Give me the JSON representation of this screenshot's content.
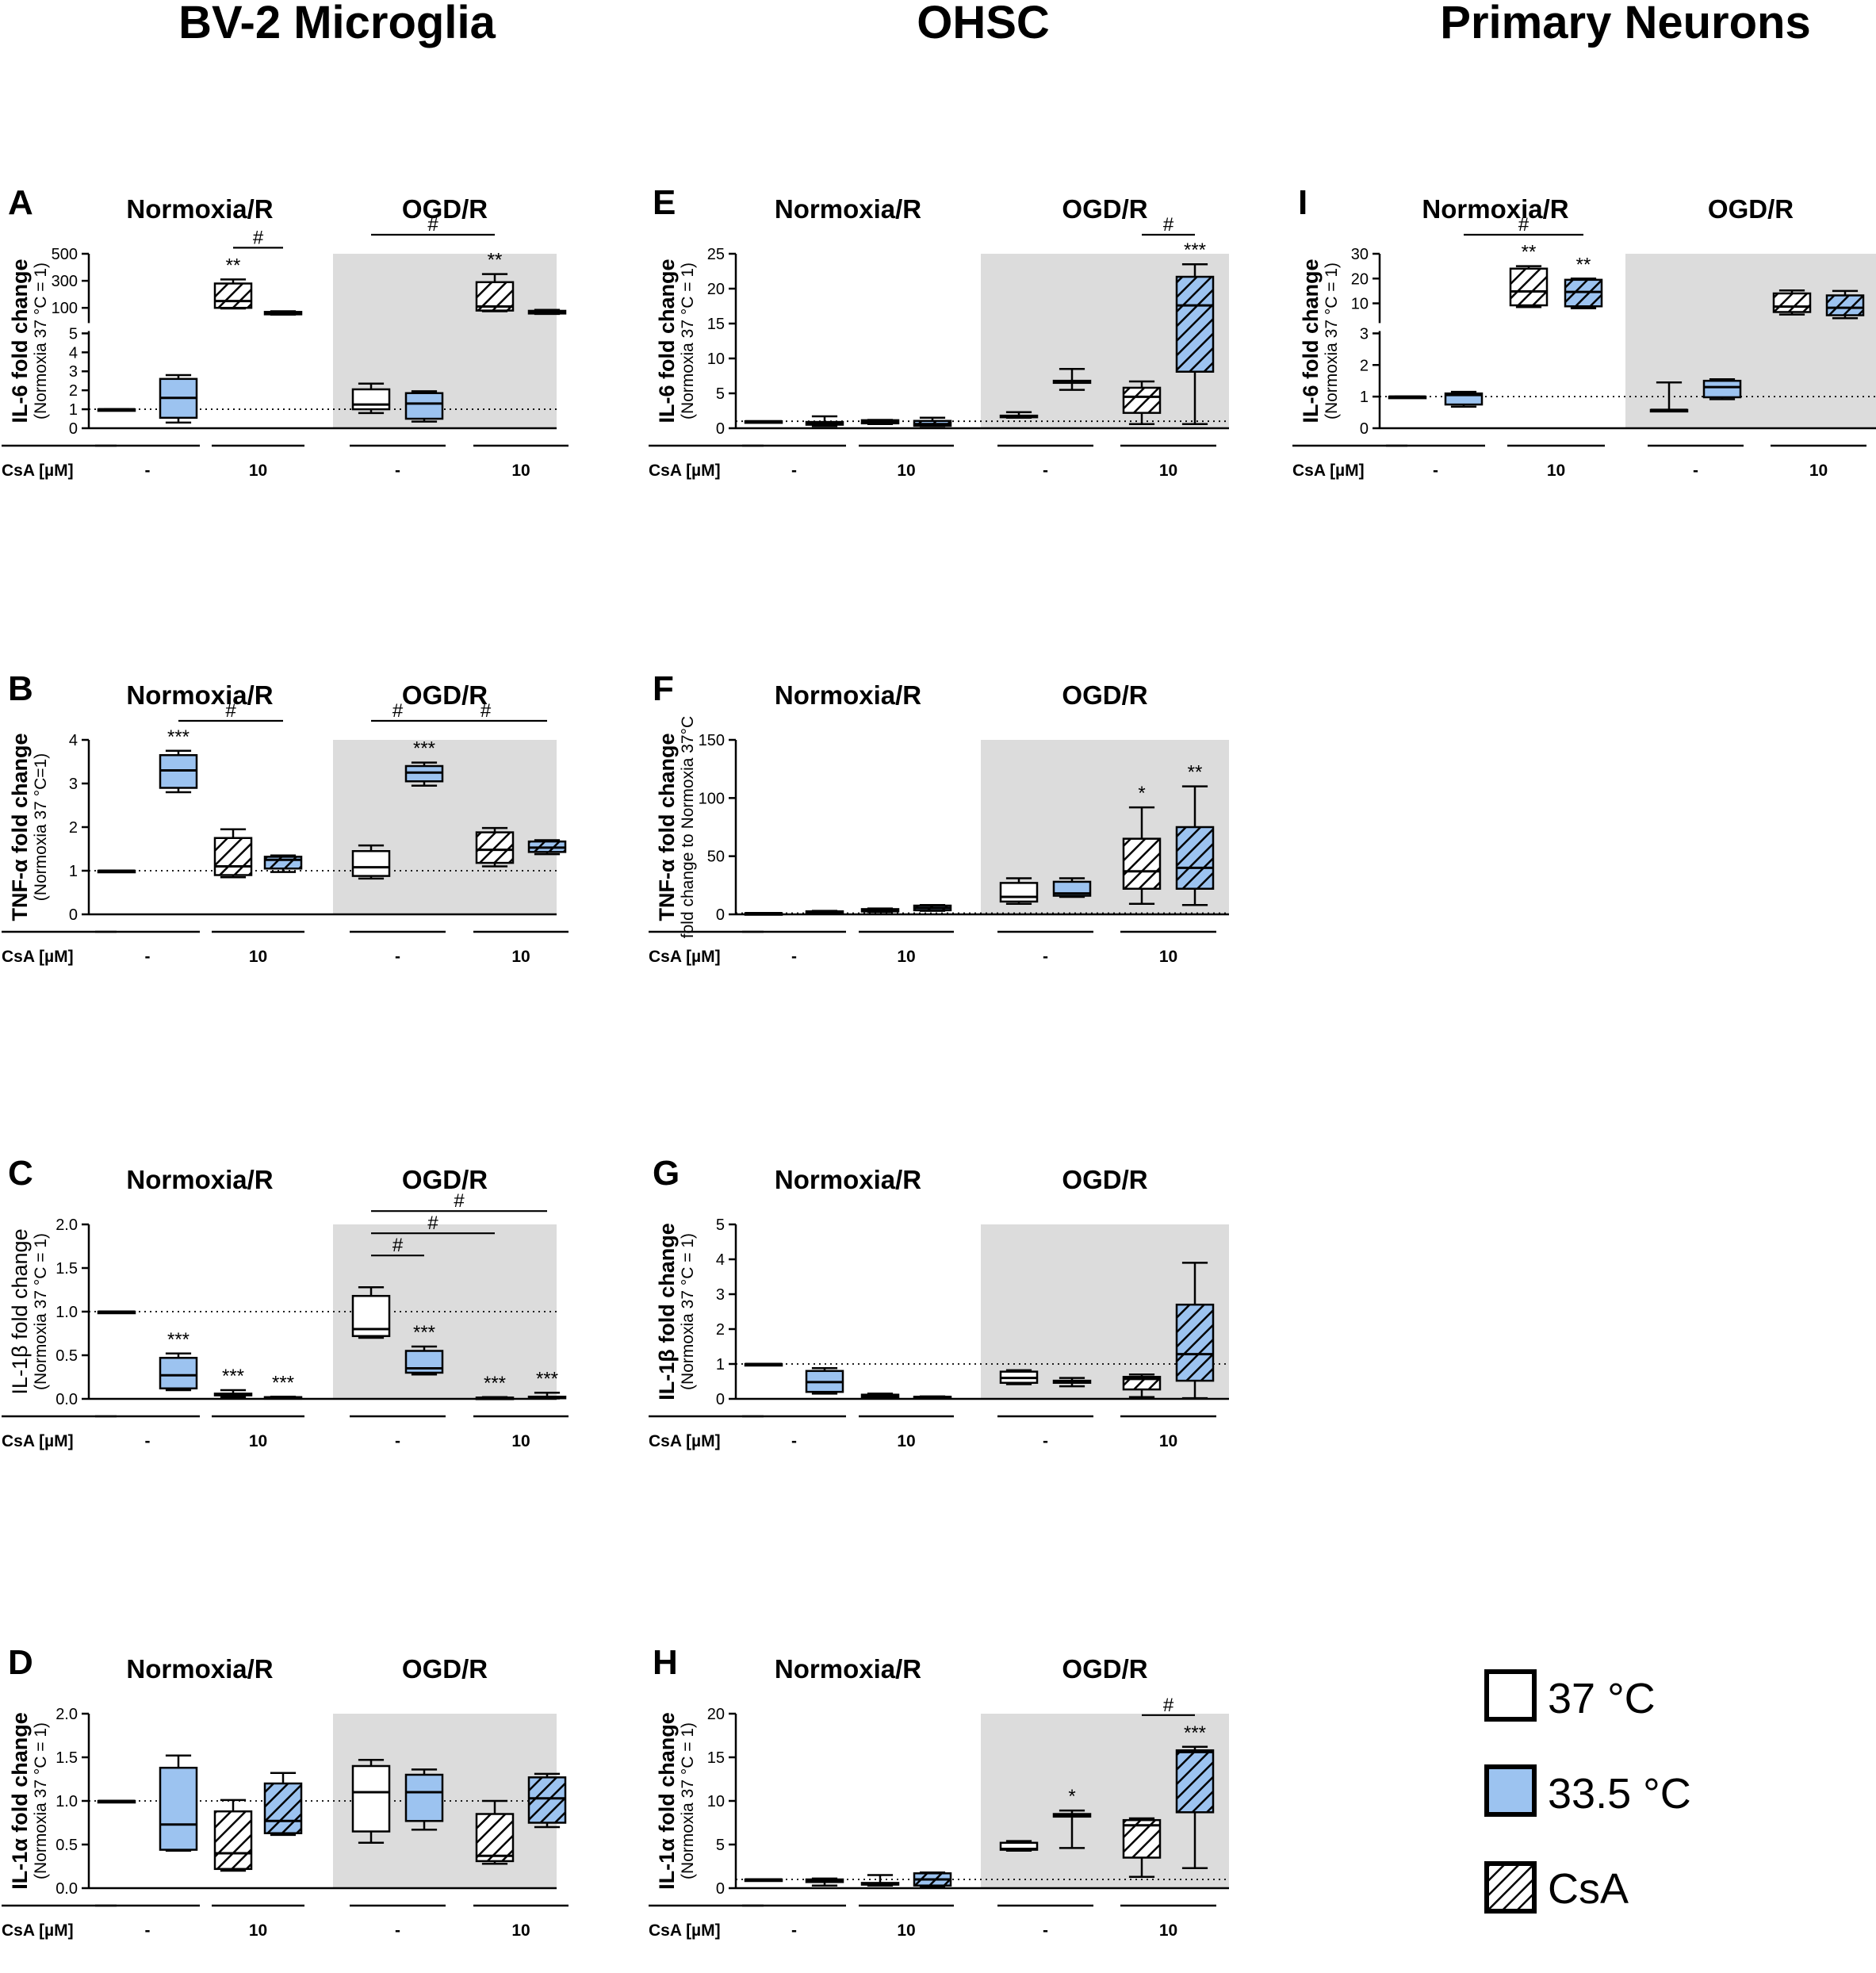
{
  "columns": [
    "BV-2 Microglia",
    "OHSC",
    "Primary Neurons"
  ],
  "colors": {
    "c37": "#ffffff",
    "c335": "#9cc3f0",
    "shade": "#dcdcdc",
    "hatch": "#000000"
  },
  "legend": [
    {
      "label": "37 °C",
      "style": "white"
    },
    {
      "label": "33.5 °C",
      "style": "blue"
    },
    {
      "label": "CsA",
      "style": "hatch"
    }
  ],
  "chart_data": [
    {
      "id": "A",
      "type": "box",
      "column": "BV-2 Microglia",
      "ylabel": "IL-6 fold change",
      "ylabel2": "(Normoxia 37 °C = 1)",
      "axis_break": {
        "lower": [
          0,
          5
        ],
        "upper": [
          5,
          500
        ]
      },
      "ticks": [
        0,
        1,
        2,
        3,
        4,
        5,
        100,
        300,
        500
      ],
      "conditions": [
        "Normoxia/R",
        "OGD/R"
      ],
      "csa_label": "CsA [µM]",
      "csa_groups": [
        "-",
        "10",
        "-",
        "10"
      ],
      "groups": [
        "Norm 37",
        "Norm 33.5",
        "Norm CsA 37",
        "Norm CsA 33.5",
        "OGD 37",
        "OGD 33.5",
        "OGD CsA 37",
        "OGD CsA 33.5"
      ],
      "boxes": [
        {
          "style": "white",
          "min": 1,
          "q1": 1,
          "med": 1,
          "q3": 1,
          "max": 1
        },
        {
          "style": "blue",
          "min": 0.3,
          "q1": 0.55,
          "med": 1.6,
          "q3": 2.6,
          "max": 2.8
        },
        {
          "style": "hatch",
          "min": 95,
          "q1": 100,
          "med": 150,
          "q3": 280,
          "max": 310
        },
        {
          "style": "hatch-blue",
          "min": 50,
          "q1": 52,
          "med": 60,
          "q3": 70,
          "max": 75
        },
        {
          "style": "white",
          "min": 0.8,
          "q1": 1.0,
          "med": 1.25,
          "q3": 2.05,
          "max": 2.35
        },
        {
          "style": "blue",
          "min": 0.35,
          "q1": 0.5,
          "med": 1.3,
          "q3": 1.85,
          "max": 1.95
        },
        {
          "style": "hatch",
          "min": 75,
          "q1": 80,
          "med": 110,
          "q3": 290,
          "max": 350
        },
        {
          "style": "hatch-blue",
          "min": 55,
          "q1": 58,
          "med": 63,
          "q3": 78,
          "max": 85
        }
      ],
      "stars": [
        {
          "g": 2,
          "text": "**"
        },
        {
          "g": 6,
          "text": "**"
        }
      ],
      "brackets": [
        {
          "from": 2,
          "to": 3,
          "text": "#"
        },
        {
          "from": 4,
          "to": 6,
          "text": "#"
        }
      ]
    },
    {
      "id": "B",
      "type": "box",
      "column": "BV-2 Microglia",
      "ylabel": "TNF-α fold change",
      "ylabel2": "(Normoxia 37 °C=1)",
      "ylim": [
        0,
        4
      ],
      "ticks": [
        0,
        1,
        2,
        3,
        4
      ],
      "conditions": [
        "Normoxia/R",
        "OGD/R"
      ],
      "csa_label": "CsA [µM]",
      "csa_groups": [
        "-",
        "10",
        "-",
        "10"
      ],
      "boxes": [
        {
          "style": "white",
          "min": 1,
          "q1": 1,
          "med": 1,
          "q3": 1,
          "max": 1
        },
        {
          "style": "blue",
          "min": 2.8,
          "q1": 2.9,
          "med": 3.3,
          "q3": 3.65,
          "max": 3.75
        },
        {
          "style": "hatch",
          "min": 0.85,
          "q1": 0.9,
          "med": 1.1,
          "q3": 1.75,
          "max": 1.95
        },
        {
          "style": "hatch-blue",
          "min": 0.97,
          "q1": 1.05,
          "med": 1.25,
          "q3": 1.32,
          "max": 1.35
        },
        {
          "style": "white",
          "min": 0.82,
          "q1": 0.88,
          "med": 1.08,
          "q3": 1.45,
          "max": 1.58
        },
        {
          "style": "blue",
          "min": 2.95,
          "q1": 3.05,
          "med": 3.25,
          "q3": 3.4,
          "max": 3.48
        },
        {
          "style": "hatch",
          "min": 1.1,
          "q1": 1.18,
          "med": 1.48,
          "q3": 1.88,
          "max": 1.98
        },
        {
          "style": "hatch-blue",
          "min": 1.38,
          "q1": 1.43,
          "med": 1.53,
          "q3": 1.67,
          "max": 1.7
        }
      ],
      "stars": [
        {
          "g": 1,
          "text": "***"
        },
        {
          "g": 5,
          "text": "***"
        }
      ],
      "brackets": [
        {
          "from": 1,
          "to": 3,
          "text": "#"
        },
        {
          "from": 4,
          "to": 5,
          "text": "#"
        },
        {
          "from": 5,
          "to": 7,
          "text": "#"
        }
      ]
    },
    {
      "id": "C",
      "type": "box",
      "column": "BV-2 Microglia",
      "ylabel": "IL-1β fold change",
      "ylabel2": "(Normoxia 37 °C = 1)",
      "ylabel_bold": false,
      "ylim": [
        0,
        2
      ],
      "ticks": [
        0.0,
        0.5,
        1.0,
        1.5,
        2.0
      ],
      "tick_decimals": 1,
      "conditions": [
        "Normoxia/R",
        "OGD/R"
      ],
      "csa_label": "CsA [µM]",
      "csa_groups": [
        "-",
        "10",
        "-",
        "10"
      ],
      "boxes": [
        {
          "style": "white",
          "min": 1,
          "q1": 1,
          "med": 1,
          "q3": 1,
          "max": 1
        },
        {
          "style": "blue",
          "min": 0.1,
          "q1": 0.12,
          "med": 0.27,
          "q3": 0.47,
          "max": 0.52
        },
        {
          "style": "hatch",
          "min": 0.02,
          "q1": 0.04,
          "med": 0.05,
          "q3": 0.06,
          "max": 0.1
        },
        {
          "style": "hatch-blue",
          "min": 0.005,
          "q1": 0.01,
          "med": 0.015,
          "q3": 0.02,
          "max": 0.025
        },
        {
          "style": "white",
          "min": 0.7,
          "q1": 0.72,
          "med": 0.8,
          "q3": 1.18,
          "max": 1.28
        },
        {
          "style": "blue",
          "min": 0.28,
          "q1": 0.3,
          "med": 0.35,
          "q3": 0.55,
          "max": 0.6
        },
        {
          "style": "hatch",
          "min": 0.005,
          "q1": 0.008,
          "med": 0.01,
          "q3": 0.015,
          "max": 0.02
        },
        {
          "style": "hatch-blue",
          "min": 0.005,
          "q1": 0.01,
          "med": 0.015,
          "q3": 0.025,
          "max": 0.07
        }
      ],
      "stars": [
        {
          "g": 1,
          "text": "***"
        },
        {
          "g": 2,
          "text": "***"
        },
        {
          "g": 3,
          "text": "***"
        },
        {
          "g": 5,
          "text": "***"
        },
        {
          "g": 6,
          "text": "***"
        },
        {
          "g": 7,
          "text": "***"
        }
      ],
      "brackets": [
        {
          "from": 4,
          "to": 5,
          "text": "#"
        },
        {
          "from": 4,
          "to": 6,
          "text": "#"
        },
        {
          "from": 4,
          "to": 7,
          "text": "#"
        }
      ]
    },
    {
      "id": "D",
      "type": "box",
      "column": "BV-2 Microglia",
      "ylabel": "IL-1α fold change",
      "ylabel2": "(Normoxia 37 °C = 1)",
      "ylim": [
        0,
        2
      ],
      "ticks": [
        0.0,
        0.5,
        1.0,
        1.5,
        2.0
      ],
      "tick_decimals": 1,
      "conditions": [
        "Normoxia/R",
        "OGD/R"
      ],
      "csa_label": "CsA [µM]",
      "csa_groups": [
        "-",
        "10",
        "-",
        "10"
      ],
      "boxes": [
        {
          "style": "white",
          "min": 1,
          "q1": 1,
          "med": 1,
          "q3": 1,
          "max": 1
        },
        {
          "style": "blue",
          "min": 0.43,
          "q1": 0.44,
          "med": 0.73,
          "q3": 1.38,
          "max": 1.52
        },
        {
          "style": "hatch",
          "min": 0.2,
          "q1": 0.22,
          "med": 0.4,
          "q3": 0.88,
          "max": 1.01
        },
        {
          "style": "hatch-blue",
          "min": 0.61,
          "q1": 0.63,
          "med": 0.77,
          "q3": 1.2,
          "max": 1.32
        },
        {
          "style": "white",
          "min": 0.52,
          "q1": 0.65,
          "med": 1.1,
          "q3": 1.4,
          "max": 1.47
        },
        {
          "style": "blue",
          "min": 0.67,
          "q1": 0.77,
          "med": 1.1,
          "q3": 1.3,
          "max": 1.36
        },
        {
          "style": "hatch",
          "min": 0.28,
          "q1": 0.31,
          "med": 0.37,
          "q3": 0.85,
          "max": 1.0
        },
        {
          "style": "hatch-blue",
          "min": 0.7,
          "q1": 0.75,
          "med": 1.03,
          "q3": 1.27,
          "max": 1.31
        }
      ],
      "stars": [],
      "brackets": []
    },
    {
      "id": "E",
      "type": "box",
      "column": "OHSC",
      "ylabel": "IL-6 fold change",
      "ylabel2": "(Normoxia 37 °C = 1)",
      "ylim": [
        0,
        25
      ],
      "ticks": [
        0,
        5,
        10,
        15,
        20,
        25
      ],
      "conditions": [
        "Normoxia/R",
        "OGD/R"
      ],
      "csa_label": "CsA [µM]",
      "csa_groups": [
        "-",
        "10",
        "-",
        "10"
      ],
      "boxes": [
        {
          "style": "white",
          "min": 1,
          "q1": 1,
          "med": 1,
          "q3": 1,
          "max": 1
        },
        {
          "style": "blue",
          "min": 0.3,
          "q1": 0.5,
          "med": 0.7,
          "q3": 0.9,
          "max": 1.7
        },
        {
          "style": "hatch",
          "min": 0.6,
          "q1": 0.7,
          "med": 0.9,
          "q3": 1.15,
          "max": 1.2
        },
        {
          "style": "hatch-blue",
          "min": 0.3,
          "q1": 0.35,
          "med": 0.6,
          "q3": 1.05,
          "max": 1.5
        },
        {
          "style": "white",
          "min": 1.5,
          "q1": 1.6,
          "med": 1.7,
          "q3": 1.8,
          "max": 2.3
        },
        {
          "style": "blue",
          "min": 5.5,
          "q1": 6.5,
          "med": 6.7,
          "q3": 6.8,
          "max": 8.5
        },
        {
          "style": "hatch",
          "min": 0.6,
          "q1": 2.2,
          "med": 4.5,
          "q3": 5.8,
          "max": 6.7
        },
        {
          "style": "hatch-blue",
          "min": 0.6,
          "q1": 8.1,
          "med": 17.6,
          "q3": 21.7,
          "max": 23.5
        }
      ],
      "stars": [
        {
          "g": 7,
          "text": "***"
        }
      ],
      "brackets": [
        {
          "from": 6,
          "to": 7,
          "text": "#"
        }
      ]
    },
    {
      "id": "F",
      "type": "box",
      "column": "OHSC",
      "ylabel": "TNF-α fold change",
      "ylabel2": "fold change to Normoxia 37°C",
      "ylim": [
        0,
        150
      ],
      "ticks": [
        0,
        50,
        100,
        150
      ],
      "conditions": [
        "Normoxia/R",
        "OGD/R"
      ],
      "csa_label": "CsA [µM]",
      "csa_groups": [
        "-",
        "10",
        "-",
        "10"
      ],
      "boxes": [
        {
          "style": "white",
          "min": 1,
          "q1": 1,
          "med": 1,
          "q3": 1,
          "max": 1
        },
        {
          "style": "blue",
          "min": 1.5,
          "q1": 1.8,
          "med": 2.2,
          "q3": 2.6,
          "max": 3
        },
        {
          "style": "hatch",
          "min": 2,
          "q1": 2.5,
          "med": 3.5,
          "q3": 4.5,
          "max": 5
        },
        {
          "style": "hatch-blue",
          "min": 3,
          "q1": 3.5,
          "med": 5.5,
          "q3": 7.5,
          "max": 8
        },
        {
          "style": "white",
          "min": 9,
          "q1": 11,
          "med": 15,
          "q3": 27,
          "max": 31
        },
        {
          "style": "blue",
          "min": 15,
          "q1": 16,
          "med": 18,
          "q3": 28,
          "max": 31
        },
        {
          "style": "hatch",
          "min": 9,
          "q1": 22,
          "med": 37,
          "q3": 65,
          "max": 92
        },
        {
          "style": "hatch-blue",
          "min": 8,
          "q1": 22,
          "med": 40,
          "q3": 75,
          "max": 110
        }
      ],
      "stars": [
        {
          "g": 6,
          "text": "*"
        },
        {
          "g": 7,
          "text": "**"
        }
      ],
      "brackets": []
    },
    {
      "id": "G",
      "type": "box",
      "column": "OHSC",
      "ylabel": "IL-1β fold change",
      "ylabel2": "(Normoxia 37 °C = 1)",
      "ylim": [
        0,
        5
      ],
      "ticks": [
        0,
        1,
        2,
        3,
        4,
        5
      ],
      "conditions": [
        "Normoxia/R",
        "OGD/R"
      ],
      "csa_label": "CsA [µM]",
      "csa_groups": [
        "-",
        "10",
        "-",
        "10"
      ],
      "boxes": [
        {
          "style": "white",
          "min": 1,
          "q1": 1,
          "med": 1,
          "q3": 1,
          "max": 1
        },
        {
          "style": "blue",
          "min": 0.15,
          "q1": 0.2,
          "med": 0.48,
          "q3": 0.8,
          "max": 0.88
        },
        {
          "style": "hatch",
          "min": 0.02,
          "q1": 0.04,
          "med": 0.08,
          "q3": 0.12,
          "max": 0.15
        },
        {
          "style": "hatch-blue",
          "min": 0.02,
          "q1": 0.03,
          "med": 0.05,
          "q3": 0.06,
          "max": 0.07
        },
        {
          "style": "white",
          "min": 0.42,
          "q1": 0.46,
          "med": 0.6,
          "q3": 0.78,
          "max": 0.82
        },
        {
          "style": "blue",
          "min": 0.36,
          "q1": 0.46,
          "med": 0.5,
          "q3": 0.52,
          "max": 0.6
        },
        {
          "style": "hatch",
          "min": 0.05,
          "q1": 0.27,
          "med": 0.57,
          "q3": 0.63,
          "max": 0.7
        },
        {
          "style": "hatch-blue",
          "min": 0.02,
          "q1": 0.52,
          "med": 1.28,
          "q3": 2.7,
          "max": 3.9
        }
      ],
      "stars": [],
      "brackets": []
    },
    {
      "id": "H",
      "type": "box",
      "column": "OHSC",
      "ylabel": "IL-1α fold change",
      "ylabel2": "(Normoxia 37 °C = 1)",
      "ylim": [
        0,
        20
      ],
      "ticks": [
        0,
        5,
        10,
        15,
        20
      ],
      "conditions": [
        "Normoxia/R",
        "OGD/R"
      ],
      "csa_label": "CsA [µM]",
      "csa_groups": [
        "-",
        "10",
        "-",
        "10"
      ],
      "boxes": [
        {
          "style": "white",
          "min": 1,
          "q1": 1,
          "med": 1,
          "q3": 1,
          "max": 1
        },
        {
          "style": "blue",
          "min": 0.3,
          "q1": 0.7,
          "med": 0.9,
          "q3": 1.0,
          "max": 1.1
        },
        {
          "style": "hatch",
          "min": 0.3,
          "q1": 0.4,
          "med": 0.5,
          "q3": 0.6,
          "max": 1.5
        },
        {
          "style": "hatch-blue",
          "min": 0.2,
          "q1": 0.3,
          "med": 1.0,
          "q3": 1.7,
          "max": 1.8
        },
        {
          "style": "white",
          "min": 4.3,
          "q1": 4.4,
          "med": 4.5,
          "q3": 5.2,
          "max": 5.4
        },
        {
          "style": "blue",
          "min": 4.6,
          "q1": 8.2,
          "med": 8.4,
          "q3": 8.5,
          "max": 8.9
        },
        {
          "style": "hatch",
          "min": 1.3,
          "q1": 3.5,
          "med": 7.2,
          "q3": 7.8,
          "max": 8.0
        },
        {
          "style": "hatch-blue",
          "min": 2.3,
          "q1": 8.7,
          "med": 15.6,
          "q3": 15.8,
          "max": 16.2
        }
      ],
      "stars": [
        {
          "g": 5,
          "text": "*"
        },
        {
          "g": 7,
          "text": "***"
        }
      ],
      "brackets": [
        {
          "from": 6,
          "to": 7,
          "text": "#"
        }
      ]
    },
    {
      "id": "I",
      "type": "box",
      "column": "Primary Neurons",
      "ylabel": "IL-6 fold change",
      "ylabel2": "(Normoxia 37 °C = 1)",
      "axis_break": {
        "lower": [
          0,
          3
        ],
        "upper": [
          3,
          30
        ]
      },
      "ticks": [
        0,
        1,
        2,
        3,
        10,
        20,
        30
      ],
      "conditions": [
        "Normoxia/R",
        "OGD/R"
      ],
      "csa_label": "CsA [µM]",
      "csa_groups": [
        "-",
        "10",
        "-",
        "10"
      ],
      "boxes": [
        {
          "style": "white",
          "min": 1,
          "q1": 1,
          "med": 1,
          "q3": 1,
          "max": 1
        },
        {
          "style": "blue",
          "min": 0.68,
          "q1": 0.75,
          "med": 1.05,
          "q3": 1.1,
          "max": 1.15
        },
        {
          "style": "hatch",
          "min": 8.5,
          "q1": 9.2,
          "med": 14.8,
          "q3": 24,
          "max": 25
        },
        {
          "style": "hatch-blue",
          "min": 8,
          "q1": 8.8,
          "med": 14.6,
          "q3": 19.5,
          "max": 20
        },
        {
          "style": "white",
          "min": 0.58,
          "q1": 0.58,
          "med": 0.58,
          "q3": 0.58,
          "max": 1.45
        },
        {
          "style": "blue",
          "min": 0.92,
          "q1": 0.98,
          "med": 1.3,
          "q3": 1.5,
          "max": 1.55
        },
        {
          "style": "hatch",
          "min": 5.5,
          "q1": 6.5,
          "med": 8.7,
          "q3": 14,
          "max": 15.2
        },
        {
          "style": "hatch-blue",
          "min": 4,
          "q1": 5.2,
          "med": 8.2,
          "q3": 13.2,
          "max": 15
        }
      ],
      "stars": [
        {
          "g": 2,
          "text": "**"
        },
        {
          "g": 3,
          "text": "**"
        }
      ],
      "brackets": [
        {
          "from": 1,
          "to": 3,
          "text": "#"
        }
      ]
    }
  ]
}
